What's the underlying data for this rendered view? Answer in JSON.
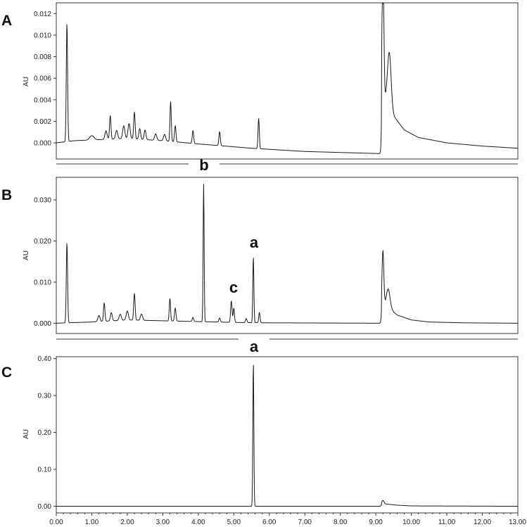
{
  "chart_data": [
    {
      "type": "line",
      "panel_label": "A",
      "ylabel": "AU",
      "xlim": [
        0,
        13
      ],
      "ylim": [
        -0.0015,
        0.013
      ],
      "yticks": [
        0.0,
        0.002,
        0.004,
        0.006,
        0.008,
        0.01,
        0.012
      ],
      "ytick_labels": [
        "0.000",
        "0.002",
        "0.004",
        "0.006",
        "0.008",
        "0.010",
        "0.012"
      ],
      "baseline": [
        [
          0,
          0.0
        ],
        [
          0.5,
          0.0002
        ],
        [
          2.0,
          0.0004
        ],
        [
          3.0,
          0.0002
        ],
        [
          4.0,
          -0.0001
        ],
        [
          5.5,
          -0.0005
        ],
        [
          7.0,
          -0.0008
        ],
        [
          9.15,
          -0.001
        ]
      ],
      "tail": [
        [
          9.3,
          0.004
        ],
        [
          9.5,
          0.0025
        ],
        [
          9.8,
          0.0012
        ],
        [
          10.2,
          0.0005
        ],
        [
          11.0,
          0.0
        ],
        [
          12.0,
          -0.0003
        ],
        [
          13.0,
          -0.0005
        ]
      ],
      "peaks": [
        {
          "x": 0.3,
          "y": 0.011,
          "w": 0.018
        },
        {
          "x": 1.0,
          "y": 0.0004,
          "w": 0.06
        },
        {
          "x": 1.4,
          "y": 0.0008,
          "w": 0.03
        },
        {
          "x": 1.52,
          "y": 0.0022,
          "w": 0.02
        },
        {
          "x": 1.7,
          "y": 0.0008,
          "w": 0.03
        },
        {
          "x": 1.9,
          "y": 0.0012,
          "w": 0.03
        },
        {
          "x": 2.05,
          "y": 0.0014,
          "w": 0.03
        },
        {
          "x": 2.2,
          "y": 0.0025,
          "w": 0.02
        },
        {
          "x": 2.35,
          "y": 0.001,
          "w": 0.025
        },
        {
          "x": 2.5,
          "y": 0.0009,
          "w": 0.025
        },
        {
          "x": 2.8,
          "y": 0.0006,
          "w": 0.03
        },
        {
          "x": 3.05,
          "y": 0.0006,
          "w": 0.03
        },
        {
          "x": 3.22,
          "y": 0.0037,
          "w": 0.018
        },
        {
          "x": 3.35,
          "y": 0.0015,
          "w": 0.02
        },
        {
          "x": 3.85,
          "y": 0.0012,
          "w": 0.02
        },
        {
          "x": 4.6,
          "y": 0.0013,
          "w": 0.02
        },
        {
          "x": 5.7,
          "y": 0.0028,
          "w": 0.018
        },
        {
          "x": 9.2,
          "y": 0.013,
          "w": 0.025
        },
        {
          "x": 9.38,
          "y": 0.005,
          "w": 0.05
        }
      ],
      "annotations": [
        {
          "text": "b"
        }
      ]
    },
    {
      "type": "line",
      "panel_label": "B",
      "ylabel": "AU",
      "xlim": [
        0,
        13
      ],
      "ylim": [
        -0.0025,
        0.0355
      ],
      "yticks": [
        0.0,
        0.01,
        0.02,
        0.03
      ],
      "ytick_labels": [
        "0.000",
        "0.010",
        "0.020",
        "0.030"
      ],
      "baseline": [
        [
          0,
          0.0
        ],
        [
          1.0,
          0.0003
        ],
        [
          2.0,
          0.0008
        ],
        [
          3.0,
          0.0006
        ],
        [
          4.0,
          0.0004
        ],
        [
          5.0,
          0.0002
        ],
        [
          6.0,
          0.0001
        ],
        [
          9.15,
          0.0
        ]
      ],
      "tail": [
        [
          9.3,
          0.0042
        ],
        [
          9.6,
          0.002
        ],
        [
          10.0,
          0.0008
        ],
        [
          10.5,
          0.0003
        ],
        [
          11.5,
          0.0001
        ],
        [
          13.0,
          0.0
        ]
      ],
      "peaks": [
        {
          "x": 0.3,
          "y": 0.0195,
          "w": 0.018
        },
        {
          "x": 1.2,
          "y": 0.0015,
          "w": 0.03
        },
        {
          "x": 1.35,
          "y": 0.0045,
          "w": 0.02
        },
        {
          "x": 1.55,
          "y": 0.002,
          "w": 0.025
        },
        {
          "x": 1.8,
          "y": 0.0015,
          "w": 0.03
        },
        {
          "x": 2.0,
          "y": 0.0022,
          "w": 0.03
        },
        {
          "x": 2.2,
          "y": 0.0065,
          "w": 0.02
        },
        {
          "x": 2.4,
          "y": 0.0015,
          "w": 0.03
        },
        {
          "x": 3.2,
          "y": 0.0055,
          "w": 0.018
        },
        {
          "x": 3.35,
          "y": 0.0032,
          "w": 0.02
        },
        {
          "x": 3.85,
          "y": 0.001,
          "w": 0.02
        },
        {
          "x": 4.15,
          "y": 0.0335,
          "w": 0.014
        },
        {
          "x": 4.6,
          "y": 0.001,
          "w": 0.02
        },
        {
          "x": 4.93,
          "y": 0.0052,
          "w": 0.02
        },
        {
          "x": 5.0,
          "y": 0.0035,
          "w": 0.018
        },
        {
          "x": 5.35,
          "y": 0.001,
          "w": 0.02
        },
        {
          "x": 5.55,
          "y": 0.016,
          "w": 0.015
        },
        {
          "x": 5.72,
          "y": 0.0025,
          "w": 0.018
        },
        {
          "x": 9.2,
          "y": 0.0135,
          "w": 0.025
        },
        {
          "x": 9.35,
          "y": 0.0045,
          "w": 0.05
        }
      ],
      "annotations": [
        {
          "text": "a",
          "x": 5.55,
          "y": 0.016
        },
        {
          "text": "c",
          "x": 4.93,
          "y": 0.0052
        }
      ]
    },
    {
      "type": "line",
      "panel_label": "C",
      "ylabel": "AU",
      "xlim": [
        0,
        13
      ],
      "ylim": [
        -0.018,
        0.405
      ],
      "yticks": [
        0.0,
        0.1,
        0.2,
        0.3,
        0.4
      ],
      "ytick_labels": [
        "0.00",
        "0.10",
        "0.20",
        "0.30",
        "0.40"
      ],
      "xticks": [
        0,
        1,
        2,
        3,
        4,
        5,
        6,
        7,
        8,
        9,
        10,
        11,
        12,
        13
      ],
      "xtick_labels": [
        "0.00",
        "1.00",
        "2.00",
        "3.00",
        "4.00",
        "5.00",
        "6.00",
        "7.00",
        "8.00",
        "9.00",
        "10.00",
        "11.00",
        "12.00",
        "13.00"
      ],
      "baseline": [
        [
          0,
          0.0
        ],
        [
          5.0,
          0.0
        ],
        [
          9.1,
          0.0
        ]
      ],
      "tail": [
        [
          9.3,
          0.006
        ],
        [
          9.6,
          0.003
        ],
        [
          10.0,
          0.001
        ],
        [
          13.0,
          0.0
        ]
      ],
      "peaks": [
        {
          "x": 5.55,
          "y": 0.39,
          "w": 0.014
        },
        {
          "x": 9.2,
          "y": 0.01,
          "w": 0.03
        }
      ],
      "annotations": [
        {
          "text": "a"
        }
      ]
    }
  ]
}
